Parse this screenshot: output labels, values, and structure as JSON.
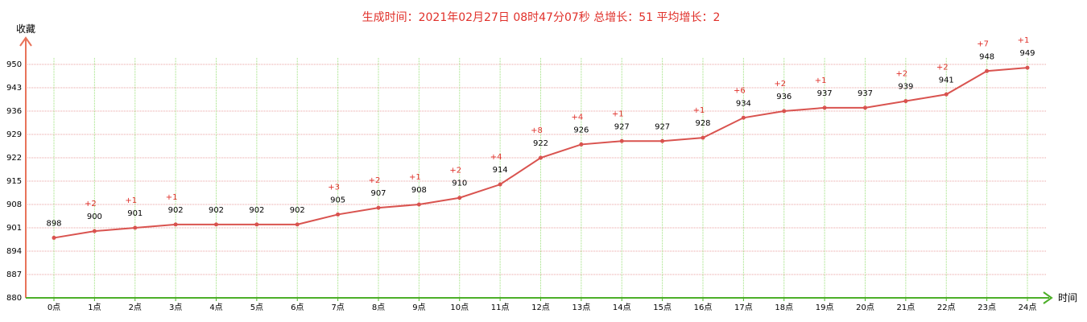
{
  "chart_data": {
    "type": "line",
    "title": "生成时间：2021年02月27日 08时47分07秒 总增长：51 平均增长：2",
    "ylabel": "收藏",
    "xlabel": "时间",
    "ylim": [
      880,
      950
    ],
    "yticks": [
      880,
      887,
      894,
      901,
      908,
      915,
      922,
      929,
      936,
      943,
      950
    ],
    "categories": [
      "0点",
      "1点",
      "2点",
      "3点",
      "4点",
      "5点",
      "6点",
      "7点",
      "8点",
      "9点",
      "10点",
      "11点",
      "12点",
      "13点",
      "14点",
      "15点",
      "16点",
      "17点",
      "18点",
      "19点",
      "20点",
      "21点",
      "22点",
      "23点",
      "24点"
    ],
    "values": [
      898,
      900,
      901,
      902,
      902,
      902,
      902,
      905,
      907,
      908,
      910,
      914,
      922,
      926,
      927,
      927,
      928,
      934,
      936,
      937,
      937,
      939,
      941,
      948,
      949
    ],
    "increments": [
      "",
      "+2",
      "+1",
      "+1",
      "",
      "",
      "",
      "+3",
      "+2",
      "+1",
      "+2",
      "+4",
      "+8",
      "+4",
      "+1",
      "",
      "+1",
      "+6",
      "+2",
      "+1",
      "",
      "+2",
      "+2",
      "+7",
      "+1"
    ],
    "grid": true,
    "legend": "none",
    "colors": {
      "line": "#d9534f",
      "title": "#e0302a",
      "increment": "#e0302a",
      "y_axis": "#e8735a",
      "x_axis": "#4caf28",
      "h_grid": "#e8a0a0",
      "v_grid": "#9be07a"
    }
  }
}
